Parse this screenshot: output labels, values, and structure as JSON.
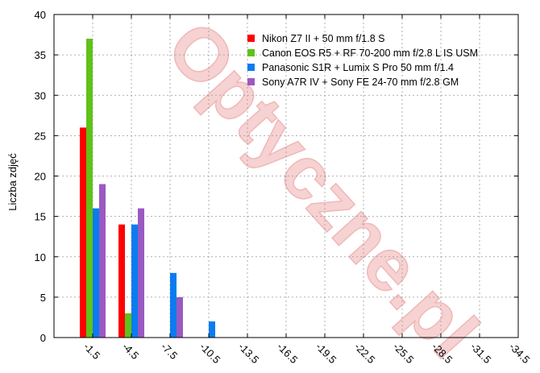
{
  "watermark": "Optyczne.pl",
  "chart_data": {
    "type": "bar",
    "ylabel": "Liczba zdjęć",
    "xlabel": "",
    "ylim": [
      0,
      40
    ],
    "yticks": [
      0,
      5,
      10,
      15,
      20,
      25,
      30,
      35,
      40
    ],
    "grid": true,
    "legend_position": "top-right",
    "categories": [
      "-1.5",
      "-4.5",
      "-7.5",
      "-10.5",
      "-13.5",
      "-16.5",
      "-19.5",
      "-22.5",
      "-25.5",
      "-28.5",
      "-31.5",
      "-34.5"
    ],
    "series": [
      {
        "name": "Nikon Z7 II + 50 mm f/1.8 S",
        "color": "#ff0000",
        "values": [
          26,
          14,
          0,
          0,
          0,
          0,
          0,
          0,
          0,
          0,
          0,
          0
        ]
      },
      {
        "name": "Canon EOS R5 + RF 70-200 mm f/2.8 L IS USM",
        "color": "#5fc21a",
        "values": [
          37,
          3,
          0,
          0,
          0,
          0,
          0,
          0,
          0,
          0,
          0,
          0
        ]
      },
      {
        "name": "Panasonic S1R + Lumix S Pro 50 mm f/1.4",
        "color": "#0a7cf0",
        "values": [
          16,
          14,
          8,
          2,
          0,
          0,
          0,
          0,
          0,
          0,
          0,
          0
        ]
      },
      {
        "name": "Sony A7R IV + Sony FE 24-70 mm f/2.8 GM",
        "color": "#9b59c2",
        "values": [
          19,
          16,
          5,
          0,
          0,
          0,
          0,
          0,
          0,
          0,
          0,
          0
        ]
      }
    ]
  }
}
